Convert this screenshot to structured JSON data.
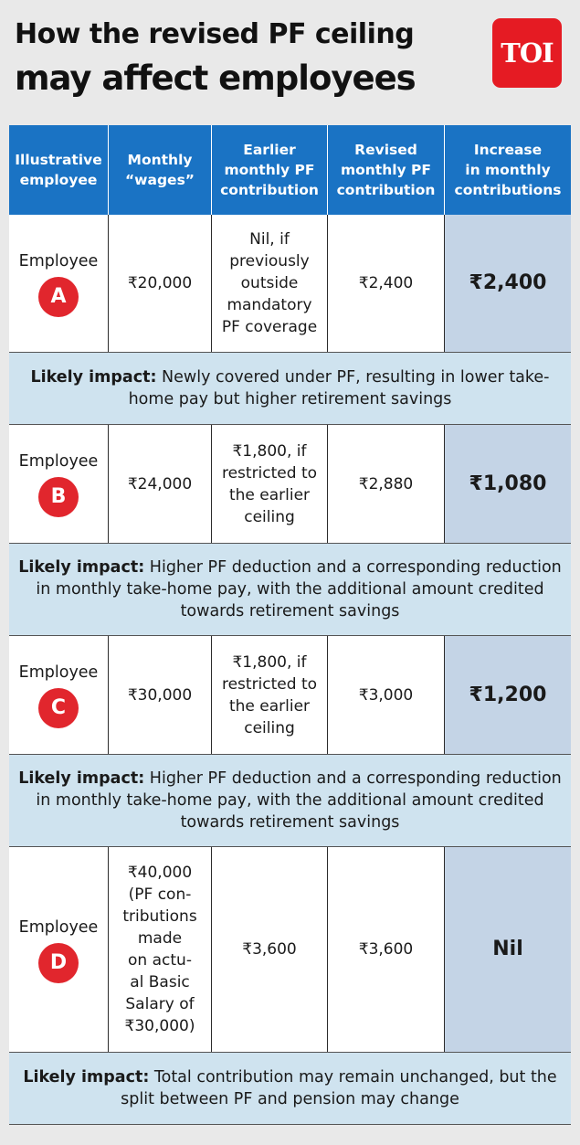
{
  "title": {
    "line1": "How the revised PF ceiling",
    "line2": "may affect employees"
  },
  "logo": {
    "text": "TOI",
    "color": "#e51b23"
  },
  "colors": {
    "header": "#1a73c4",
    "badge": "#e1262d",
    "impact_bg": "#cfe3ef",
    "increase_bg": "#c4d4e6"
  },
  "table": {
    "headers": [
      "Illustrative\nemployee",
      "Monthly\n“wages”",
      "Earlier\nmonthly PF\ncontribution",
      "Revised\nmonthly PF\ncontribution",
      "Increase\nin monthly\ncontributions"
    ],
    "rows": [
      {
        "employee": "Employee",
        "badge": "A",
        "wages": "₹20,000",
        "earlier": "Nil, if\npreviously\noutside\nmandatory\nPF coverage",
        "revised": "₹2,400",
        "increase": "₹2,400",
        "impact_label": "Likely impact:",
        "impact_text": " Newly covered under PF, resulting in lower take-home pay but higher retirement savings"
      },
      {
        "employee": "Employee",
        "badge": "B",
        "wages": "₹24,000",
        "earlier": "₹1,800, if\nrestricted to\nthe earlier\nceiling",
        "revised": "₹2,880",
        "increase": "₹1,080",
        "impact_label": "Likely impact:",
        "impact_text": " Higher PF deduction and a corresponding reduction in monthly take-home pay, with the additional amount credited towards retirement savings"
      },
      {
        "employee": "Employee",
        "badge": "C",
        "wages": "₹30,000",
        "earlier": "₹1,800, if\nrestricted to\nthe earlier\nceiling",
        "revised": "₹3,000",
        "increase": "₹1,200",
        "impact_label": "Likely impact:",
        "impact_text": " Higher PF deduction and a corresponding reduction in monthly take-home pay, with the additional amount credited towards retirement savings"
      },
      {
        "employee": "Employee",
        "badge": "D",
        "wages": "₹40,000\n(PF con-\ntributions\nmade\non actu-\nal Basic\nSalary of\n₹30,000)",
        "earlier": "₹3,600",
        "revised": "₹3,600",
        "increase": "Nil",
        "impact_label": "Likely impact:",
        "impact_text": " Total contribution may remain unchanged, but the split between PF and pension may change"
      }
    ]
  }
}
